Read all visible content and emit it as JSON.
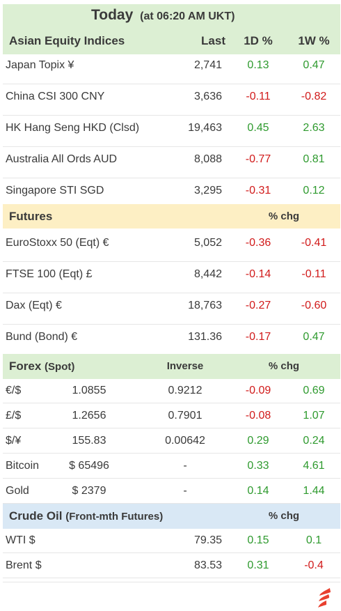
{
  "title": {
    "main": "Today",
    "sub": "(at 06:20 AM UKT)"
  },
  "asia": {
    "heading": "Asian Equity Indices",
    "col_last": "Last",
    "col_1d": "1D %",
    "col_1w": "1W %",
    "rows": [
      {
        "name": "Japan Topix  ¥",
        "last": "2,741",
        "d1": "0.13",
        "w1": "0.47"
      },
      {
        "name": "China CSI 300 CNY",
        "last": "3,636",
        "d1": "-0.11",
        "w1": "-0.82"
      },
      {
        "name": "HK Hang Seng HKD (Clsd)",
        "last": "19,463",
        "d1": "0.45",
        "w1": "2.63"
      },
      {
        "name": "Australia All Ords AUD",
        "last": "8,088",
        "d1": "-0.77",
        "w1": "0.81"
      },
      {
        "name": "Singapore STI SGD",
        "last": "3,295",
        "d1": "-0.31",
        "w1": "0.12"
      }
    ]
  },
  "futures": {
    "heading": "Futures",
    "col_chg": "% chg",
    "rows": [
      {
        "name": "EuroStoxx 50 (Eqt) €",
        "last": "5,052",
        "d1": "-0.36",
        "w1": "-0.41"
      },
      {
        "name": "FTSE 100 (Eqt)  £",
        "last": "8,442",
        "d1": "-0.14",
        "w1": "-0.11"
      },
      {
        "name": "Dax (Eqt) €",
        "last": "18,763",
        "d1": "-0.27",
        "w1": "-0.60"
      },
      {
        "name": "Bund (Bond) €",
        "last": "131.36",
        "d1": "-0.17",
        "w1": "0.47"
      }
    ]
  },
  "forex": {
    "heading": "Forex",
    "heading_note": "(Spot)",
    "col_inverse": "Inverse",
    "col_chg": "% chg",
    "rows": [
      {
        "name": "€/$",
        "spot": "1.0855",
        "inverse": "0.9212",
        "d1": "-0.09",
        "w1": "0.69"
      },
      {
        "name": "£/$",
        "spot": "1.2656",
        "inverse": "0.7901",
        "d1": "-0.08",
        "w1": "1.07"
      },
      {
        "name": "$/¥",
        "spot": "155.83",
        "inverse": "0.00642",
        "d1": "0.29",
        "w1": "0.24"
      },
      {
        "name": "Bitcoin",
        "spot": "$ 65496",
        "inverse": "-",
        "d1": "0.33",
        "w1": "4.61"
      },
      {
        "name": "Gold",
        "spot": "$ 2379",
        "inverse": "-",
        "d1": "0.14",
        "w1": "1.44"
      }
    ]
  },
  "oil": {
    "heading": "Crude Oil",
    "heading_note": "(Front-mth Futures)",
    "col_chg": "% chg",
    "rows": [
      {
        "name": "WTI  $",
        "last": "79.35",
        "d1": "0.15",
        "w1": "0.1"
      },
      {
        "name": "Brent $",
        "last": "83.53",
        "d1": "0.31",
        "w1": "-0.4"
      }
    ]
  },
  "colors": {
    "positive": "#2e9a2e",
    "negative": "#d11a1a",
    "header_green": "#dcefd3",
    "header_yellow": "#fdefc4",
    "header_blue": "#d9e8f5"
  },
  "logo_icon": "flame-logo-icon"
}
